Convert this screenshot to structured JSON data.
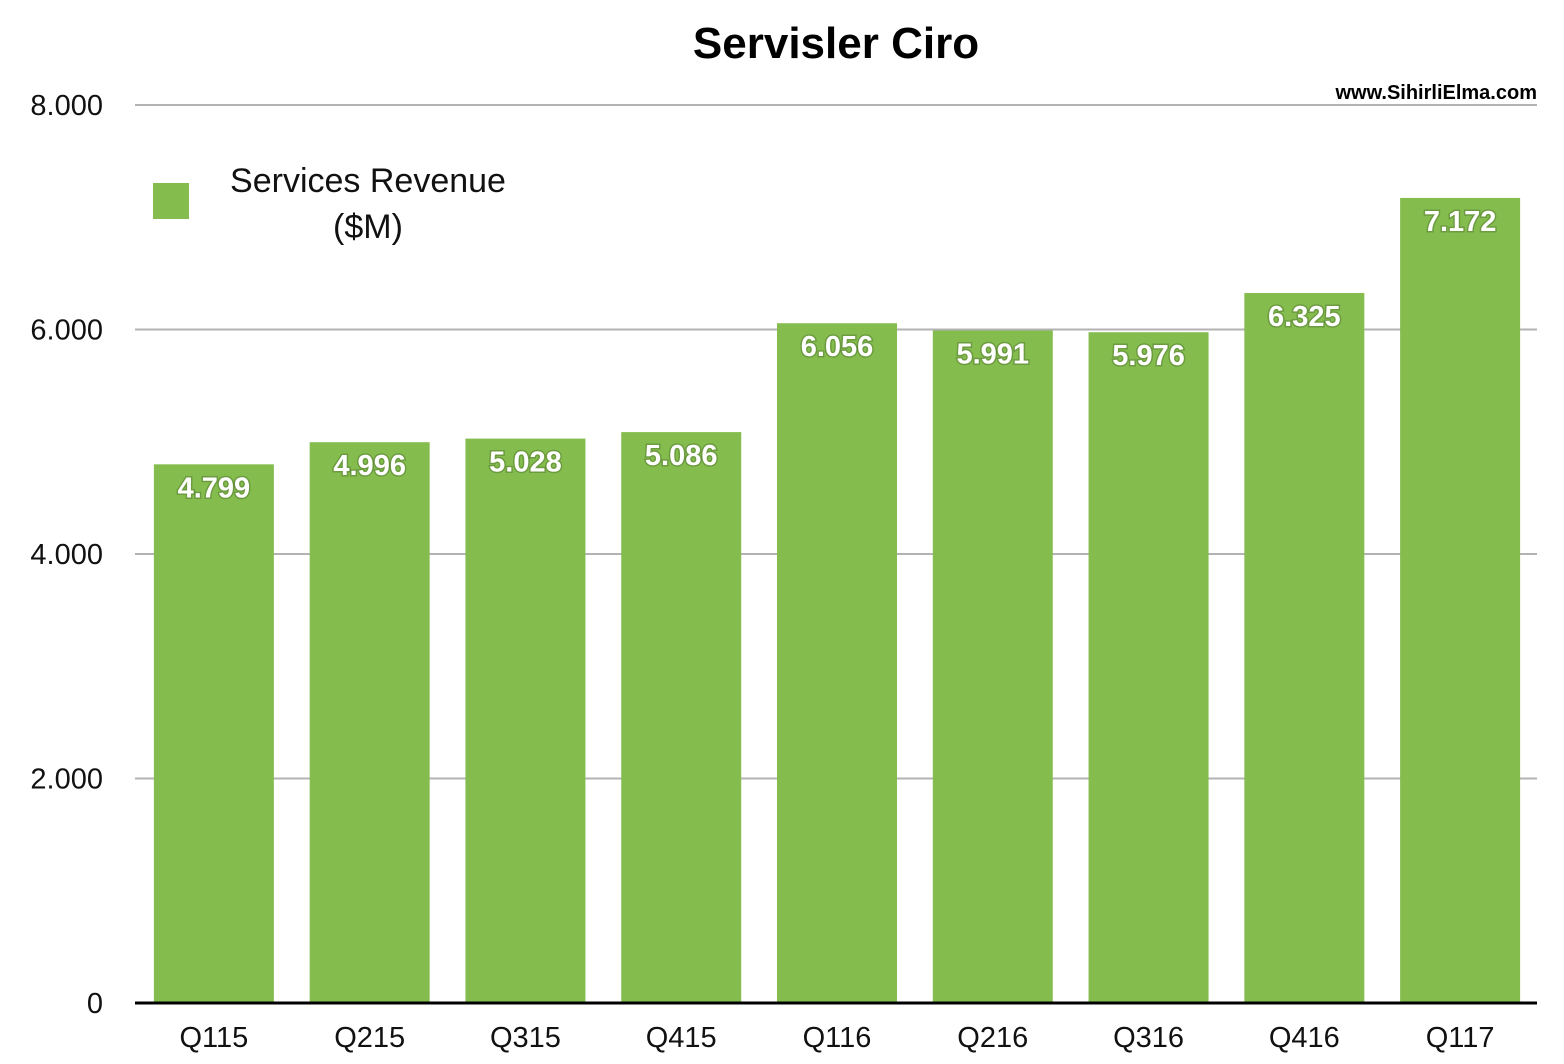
{
  "chart_data": {
    "type": "bar",
    "title": "Servisler Ciro",
    "watermark": "www.SihirliElma.com",
    "xlabel": "",
    "ylabel": "",
    "ylim": [
      0,
      8000
    ],
    "yticks": [
      0,
      2000,
      4000,
      6000,
      8000
    ],
    "ytick_labels": [
      "0",
      "2.000",
      "4.000",
      "6.000",
      "8.000"
    ],
    "grid": true,
    "legend_position": "top-left",
    "categories": [
      "Q115",
      "Q215",
      "Q315",
      "Q415",
      "Q116",
      "Q216",
      "Q316",
      "Q416",
      "Q117"
    ],
    "series": [
      {
        "name": "Services Revenue ($M)",
        "legend_lines": [
          "Services Revenue",
          "($M)"
        ],
        "color": "#84BD4E",
        "values": [
          4799,
          4996,
          5028,
          5086,
          6056,
          5991,
          5976,
          6325,
          7172
        ],
        "data_labels": [
          "4.799",
          "4.996",
          "5.028",
          "5.086",
          "6.056",
          "5.991",
          "5.976",
          "6.325",
          "7.172"
        ]
      }
    ]
  },
  "colors": {
    "bar": "#84BD4E",
    "grid": "#B3B3B3",
    "axis": "#000000"
  }
}
